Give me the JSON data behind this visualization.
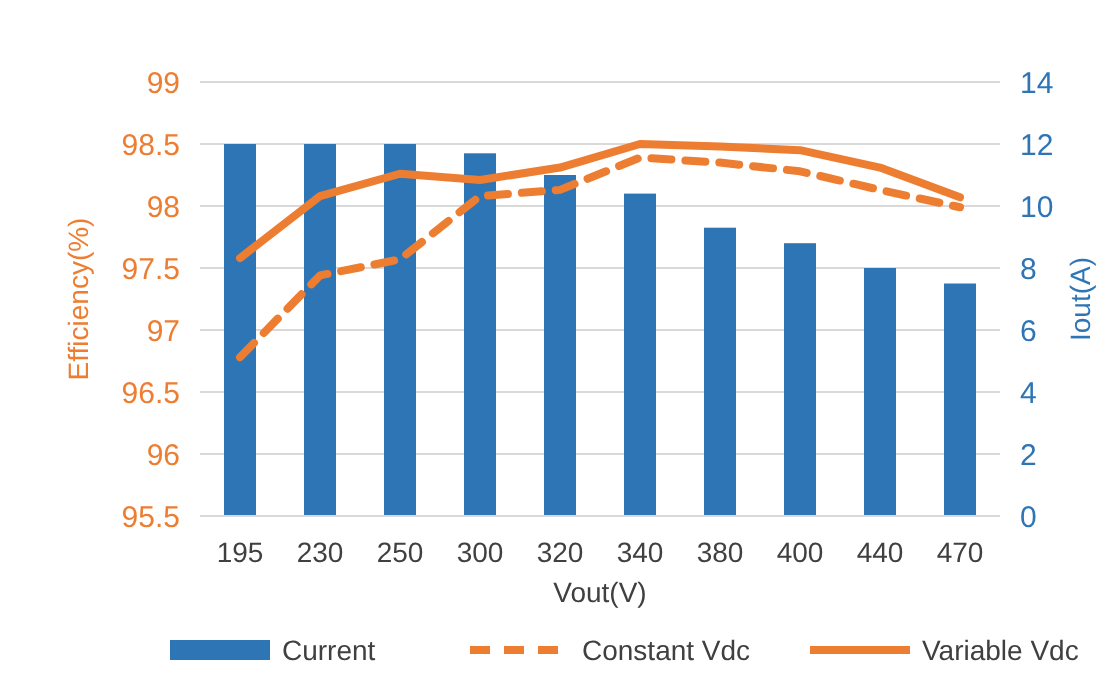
{
  "chart_data": {
    "type": "bar",
    "xlabel": "Vout(V)",
    "ylabel": "Efficiency(%)",
    "y2label": "Iout(A)",
    "categories": [
      "195",
      "230",
      "250",
      "300",
      "320",
      "340",
      "380",
      "400",
      "440",
      "470"
    ],
    "series": [
      {
        "name": "Current",
        "axis": "y2",
        "color": "#2e75b6",
        "values": [
          12,
          12,
          12,
          11.7,
          11.0,
          10.4,
          9.3,
          8.8,
          8.0,
          7.5
        ]
      },
      {
        "name": "Constant Vdc",
        "type": "line",
        "line_style": "dashed",
        "color": "#ed7d31",
        "values": [
          96.78,
          97.44,
          97.57,
          98.08,
          98.13,
          98.39,
          98.35,
          98.28,
          98.13,
          97.99
        ]
      },
      {
        "name": "Variable Vdc",
        "type": "line",
        "line_style": "solid",
        "color": "#ed7d31",
        "values": [
          97.58,
          98.08,
          98.26,
          98.21,
          98.31,
          98.5,
          98.48,
          98.45,
          98.31,
          98.07
        ]
      }
    ],
    "ylim": [
      95.5,
      99
    ],
    "yticks": [
      95.5,
      96,
      96.5,
      97,
      97.5,
      98,
      98.5,
      99
    ],
    "y2lim": [
      0,
      14
    ],
    "y2ticks": [
      0,
      2,
      4,
      6,
      8,
      10,
      12,
      14
    ],
    "grid": "y",
    "legend": "bottom",
    "marker": "none"
  }
}
